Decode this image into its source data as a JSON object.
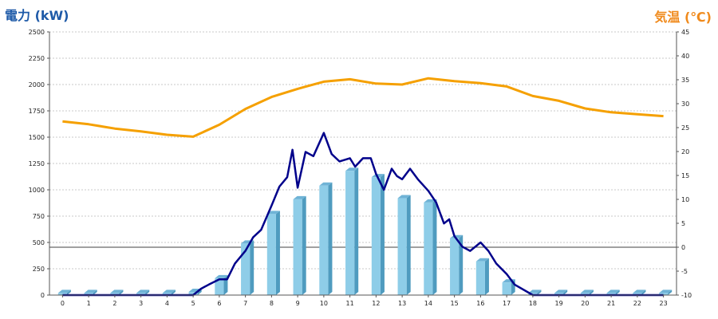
{
  "chart_data": {
    "type": "bar+line",
    "categories": [
      "0",
      "1",
      "2",
      "3",
      "4",
      "5",
      "6",
      "7",
      "8",
      "9",
      "10",
      "11",
      "12",
      "13",
      "14",
      "15",
      "16",
      "17",
      "18",
      "19",
      "20",
      "21",
      "22",
      "23"
    ],
    "y_left": {
      "label": "電力 (kW)",
      "ylim": [
        0,
        2500
      ],
      "ticks": [
        0,
        250,
        500,
        750,
        1000,
        1250,
        1500,
        1750,
        2000,
        2250,
        2500
      ]
    },
    "y_right": {
      "label": "気温 (℃)",
      "ylim": [
        -10,
        45
      ],
      "ticks": [
        -10,
        -5,
        0,
        5,
        10,
        15,
        20,
        25,
        30,
        35,
        40,
        45
      ]
    },
    "grid": true,
    "colors": {
      "bars": "#8ecde8",
      "power_line": "#00008b",
      "temperature_line": "#f5a000",
      "left_label": "#1e5aa8",
      "right_label": "#f08a1c"
    },
    "series": [
      {
        "kind": "bar",
        "axis": "left",
        "values": [
          20,
          20,
          20,
          20,
          20,
          30,
          160,
          490,
          770,
          910,
          1040,
          1180,
          1120,
          920,
          880,
          540,
          320,
          120,
          20,
          20,
          20,
          20,
          20,
          20
        ]
      },
      {
        "kind": "line",
        "axis": "left",
        "x": [
          0,
          1,
          2,
          3,
          4,
          5,
          5.3,
          5.6,
          6,
          6.3,
          6.6,
          7,
          7.3,
          7.6,
          8,
          8.3,
          8.6,
          8.8,
          9,
          9.3,
          9.6,
          10,
          10.3,
          10.6,
          11,
          11.2,
          11.5,
          11.8,
          12,
          12.3,
          12.6,
          12.8,
          13,
          13.3,
          13.6,
          14,
          14.3,
          14.6,
          14.8,
          15,
          15.3,
          15.6,
          16,
          16.3,
          16.6,
          17,
          17.3,
          18,
          19,
          20,
          21,
          22,
          23
        ],
        "values": [
          0,
          0,
          0,
          0,
          0,
          0,
          60,
          100,
          150,
          150,
          300,
          420,
          550,
          620,
          850,
          1030,
          1120,
          1380,
          1020,
          1360,
          1320,
          1540,
          1340,
          1270,
          1300,
          1220,
          1300,
          1300,
          1150,
          1000,
          1200,
          1130,
          1100,
          1200,
          1100,
          990,
          880,
          680,
          720,
          560,
          460,
          420,
          500,
          420,
          300,
          200,
          100,
          0,
          0,
          0,
          0,
          0,
          0
        ]
      },
      {
        "kind": "line",
        "axis": "right",
        "x": [
          0,
          1,
          2,
          3,
          4,
          5,
          6,
          7,
          8,
          9,
          10,
          11,
          12,
          13,
          14,
          15,
          16,
          17,
          18,
          19,
          20,
          21,
          22,
          23
        ],
        "values": [
          26.3,
          25.7,
          24.8,
          24.2,
          23.5,
          23.1,
          25.6,
          28.9,
          31.4,
          33.1,
          34.6,
          35.1,
          34.2,
          34.0,
          35.3,
          34.7,
          34.3,
          33.6,
          31.6,
          30.6,
          29.0,
          28.2,
          27.8,
          27.4
        ]
      }
    ]
  }
}
